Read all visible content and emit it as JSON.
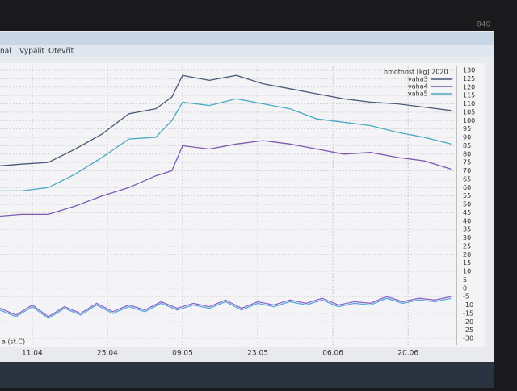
{
  "screen_label": "840",
  "toolbar": {
    "items": [
      "nal",
      "Vypálit",
      "Otevřít"
    ]
  },
  "chart_data": {
    "type": "line",
    "legend_title": "hmotnost [kg] 2020",
    "legend_corner": "top-right",
    "bottom_legend": "a (st.C)",
    "grid": true,
    "x": [
      96,
      100,
      105,
      110,
      115,
      120,
      125,
      128,
      130,
      135,
      140,
      145,
      150,
      155,
      160,
      165,
      170,
      175,
      180
    ],
    "xlim": [
      96,
      181
    ],
    "xticks": [
      {
        "value": 102,
        "label": "11.04"
      },
      {
        "value": 116,
        "label": "25.04"
      },
      {
        "value": 130,
        "label": "09.05"
      },
      {
        "value": 144,
        "label": "23.05"
      },
      {
        "value": 158,
        "label": "06.06"
      },
      {
        "value": 172,
        "label": "20.06"
      }
    ],
    "ylim": [
      -30,
      130
    ],
    "yticks": [
      -30,
      -25,
      -20,
      -15,
      -10,
      -5,
      0,
      5,
      10,
      15,
      20,
      25,
      30,
      35,
      40,
      45,
      50,
      55,
      60,
      65,
      70,
      75,
      80,
      85,
      90,
      95,
      100,
      105,
      110,
      115,
      120,
      125,
      130
    ],
    "series": [
      {
        "name": "vaha3",
        "color": "#4a5a78",
        "values": [
          73,
          74,
          75,
          83,
          92,
          104,
          107,
          114,
          127,
          124,
          127,
          122,
          119,
          116,
          113,
          111,
          110,
          108,
          106
        ]
      },
      {
        "name": "vaha4",
        "color": "#7a5ab0",
        "values": [
          43,
          44,
          44,
          49,
          55,
          60,
          67,
          70,
          85,
          83,
          86,
          88,
          86,
          83,
          80,
          81,
          78,
          76,
          71
        ]
      },
      {
        "name": "vaha5",
        "color": "#4aa8c0",
        "values": [
          58,
          58,
          60,
          68,
          78,
          89,
          90,
          100,
          111,
          109,
          113,
          110,
          107,
          101,
          99,
          97,
          93,
          90,
          86
        ]
      },
      {
        "color": "#8a6ac8",
        "x": [
          96,
          99,
          102,
          105,
          108,
          111,
          114,
          117,
          120,
          123,
          126,
          129,
          132,
          135,
          138,
          141,
          144,
          147,
          150,
          153,
          156,
          159,
          162,
          165,
          168,
          171,
          174,
          177,
          180
        ],
        "values": [
          -12,
          -16,
          -10,
          -17,
          -11,
          -15,
          -9,
          -14,
          -10,
          -13,
          -8,
          -12,
          -9,
          -11,
          -7,
          -12,
          -8,
          -10,
          -7,
          -9,
          -6,
          -10,
          -8,
          -9,
          -5,
          -8,
          -6,
          -7,
          -5
        ]
      },
      {
        "color": "#5aa8d8",
        "x": [
          96,
          99,
          102,
          105,
          108,
          111,
          114,
          117,
          120,
          123,
          126,
          129,
          132,
          135,
          138,
          141,
          144,
          147,
          150,
          153,
          156,
          159,
          162,
          165,
          168,
          171,
          174,
          177,
          180
        ],
        "values": [
          -13,
          -17,
          -11,
          -18,
          -12,
          -16,
          -10,
          -15,
          -11,
          -14,
          -9,
          -13,
          -10,
          -12,
          -8,
          -13,
          -9,
          -11,
          -8,
          -10,
          -7,
          -11,
          -9,
          -10,
          -6,
          -9,
          -7,
          -8,
          -6
        ]
      }
    ]
  }
}
